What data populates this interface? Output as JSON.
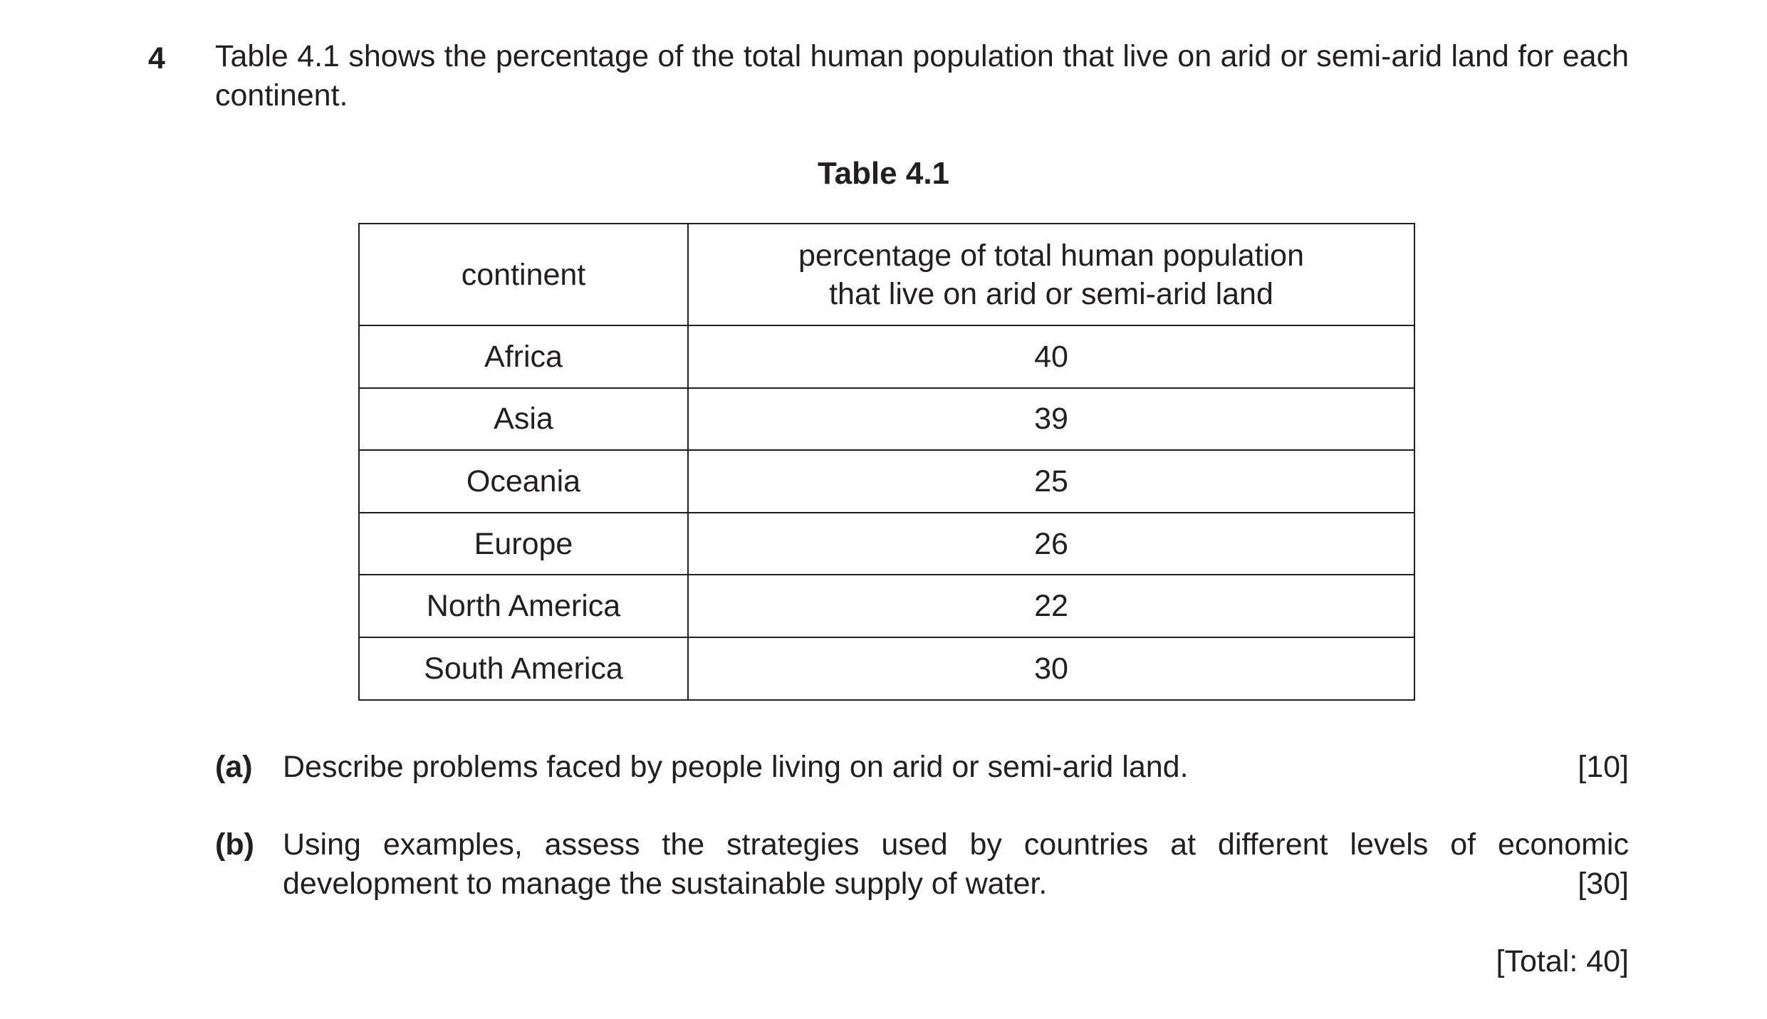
{
  "question": {
    "number": "4",
    "intro": "Table 4.1 shows the percentage of the total human population that live on arid or semi-arid land for each continent."
  },
  "table": {
    "caption": "Table 4.1",
    "headers": [
      "continent",
      "percentage of total human population that live on arid or semi-arid land"
    ],
    "rows": [
      [
        "Africa",
        "40"
      ],
      [
        "Asia",
        "39"
      ],
      [
        "Oceania",
        "25"
      ],
      [
        "Europe",
        "26"
      ],
      [
        "North America",
        "22"
      ],
      [
        "South America",
        "30"
      ]
    ]
  },
  "parts": [
    {
      "label": "(a)",
      "text": "Describe problems faced by people living on arid or semi-arid land.",
      "marks": "[10]"
    },
    {
      "label": "(b)",
      "text_line1": "Using examples, assess the strategies used by countries at different levels of economic",
      "text_line2": "development to manage the sustainable supply of water.",
      "marks": "[30]"
    }
  ],
  "total": "[Total: 40]"
}
